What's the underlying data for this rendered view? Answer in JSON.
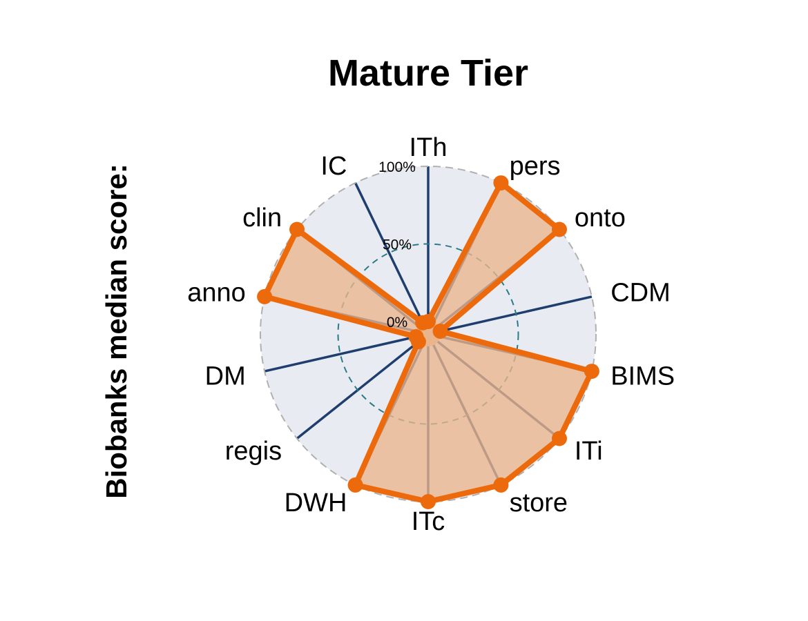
{
  "chart_data": {
    "type": "radar",
    "title": "Mature Tier",
    "ylabel": "Biobanks median score:",
    "categories": [
      "ITh",
      "pers",
      "onto",
      "CDM",
      "BIMS",
      "ITi",
      "store",
      "ITc",
      "DWH",
      "regis",
      "DM",
      "anno",
      "clin",
      "IC"
    ],
    "values": [
      0,
      100,
      100,
      0,
      100,
      100,
      100,
      100,
      100,
      0,
      0,
      100,
      100,
      0
    ],
    "ylim": [
      0,
      100
    ],
    "rticks": [
      "0%",
      "50%",
      "100%"
    ],
    "grid": true,
    "colors": {
      "fill": "#eab58d",
      "line": "#ec6a0c",
      "spoke": "#1f3e6e",
      "background": "#e8ecf2",
      "mid_ring": "#2a7a86",
      "outer_ring": "#b0b0b0"
    }
  }
}
